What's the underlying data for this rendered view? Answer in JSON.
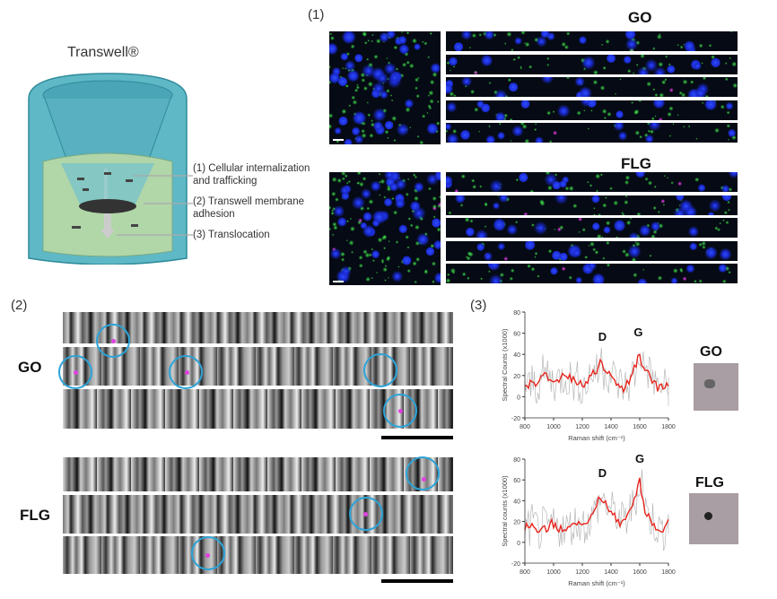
{
  "diagram": {
    "title": "Transwell®",
    "labels": [
      "(1) Cellular internalization",
      "and trafficking",
      "(2) Transwell membrane",
      "adhesion",
      "(3) Translocation"
    ]
  },
  "panel1": {
    "label": "(1)",
    "go_title": "GO",
    "flg_title": "FLG"
  },
  "panel2": {
    "label": "(2)",
    "go_label": "GO",
    "flg_label": "FLG"
  },
  "panel3": {
    "label": "(3)",
    "go_thumb_label": "GO",
    "flg_thumb_label": "FLG"
  },
  "colors": {
    "trace": "#e8251e",
    "noise": "#b8b8b8",
    "circle": "#2ba3d8",
    "particle": "#e040e0"
  },
  "chart_data": [
    {
      "type": "line",
      "name": "GO Raman spectrum",
      "xlabel": "Raman shift (cm⁻¹)",
      "ylabel": "Spectral Counts (x1000)",
      "xlim": [
        800,
        1800
      ],
      "ylim": [
        -20,
        80
      ],
      "xticks": [
        "800",
        "1000",
        "1200",
        "1400",
        "1600",
        "1800"
      ],
      "yticks": [
        "-20",
        "0",
        "20",
        "40",
        "60",
        "80"
      ],
      "annotations": [
        {
          "text": "D",
          "x": 1340
        },
        {
          "text": "G",
          "x": 1590
        }
      ],
      "x": [
        800,
        825,
        850,
        875,
        900,
        925,
        950,
        975,
        1000,
        1025,
        1050,
        1075,
        1100,
        1125,
        1150,
        1175,
        1200,
        1225,
        1250,
        1275,
        1300,
        1325,
        1350,
        1375,
        1400,
        1425,
        1450,
        1475,
        1500,
        1525,
        1550,
        1575,
        1600,
        1625,
        1650,
        1675,
        1700,
        1725,
        1750,
        1775,
        1800
      ],
      "values": [
        10,
        8,
        14,
        10,
        15,
        20,
        22,
        16,
        14,
        16,
        18,
        20,
        17,
        14,
        15,
        12,
        10,
        14,
        20,
        25,
        22,
        35,
        25,
        22,
        20,
        16,
        12,
        10,
        9,
        12,
        22,
        28,
        40,
        28,
        25,
        18,
        15,
        5,
        12,
        8,
        10
      ]
    },
    {
      "type": "line",
      "name": "FLG Raman spectrum",
      "xlabel": "Raman shift (cm⁻¹)",
      "ylabel": "Spectral counts (x1000)",
      "xlim": [
        800,
        1800
      ],
      "ylim": [
        -20,
        80
      ],
      "xticks": [
        "800",
        "1000",
        "1200",
        "1400",
        "1600",
        "1800"
      ],
      "yticks": [
        "-20",
        "0",
        "20",
        "40",
        "60",
        "80"
      ],
      "annotations": [
        {
          "text": "D",
          "x": 1340
        },
        {
          "text": "G",
          "x": 1600
        }
      ],
      "x": [
        800,
        825,
        850,
        875,
        900,
        925,
        950,
        975,
        1000,
        1025,
        1050,
        1075,
        1100,
        1125,
        1150,
        1175,
        1200,
        1225,
        1250,
        1275,
        1300,
        1325,
        1350,
        1375,
        1400,
        1425,
        1450,
        1475,
        1500,
        1525,
        1550,
        1575,
        1600,
        1625,
        1650,
        1675,
        1700,
        1725,
        1750,
        1775,
        1800
      ],
      "values": [
        12,
        14,
        18,
        13,
        10,
        15,
        10,
        18,
        14,
        12,
        16,
        12,
        15,
        17,
        18,
        20,
        17,
        18,
        22,
        28,
        35,
        42,
        38,
        33,
        30,
        28,
        22,
        20,
        22,
        30,
        35,
        45,
        62,
        40,
        25,
        22,
        18,
        12,
        10,
        15,
        22
      ]
    }
  ]
}
